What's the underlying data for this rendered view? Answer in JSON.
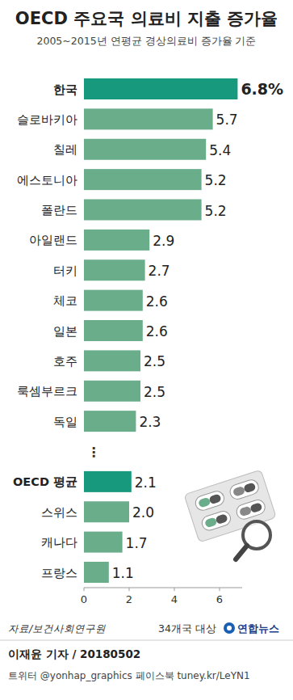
{
  "chart_data": {
    "type": "bar",
    "orientation": "horizontal",
    "title": "OECD 주요국 의료비 지출 증가율",
    "subtitle": "2005~2015년 연평균 경상의료비 증가율 기준",
    "categories": [
      "한국",
      "슬로바키아",
      "칠레",
      "에스토니아",
      "폴란드",
      "아일랜드",
      "터키",
      "체코",
      "일본",
      "호주",
      "룩셈부르크",
      "독일",
      "⋮",
      "OECD 평균",
      "스위스",
      "캐나다",
      "프랑스"
    ],
    "values": [
      6.8,
      5.7,
      5.4,
      5.2,
      5.2,
      2.9,
      2.7,
      2.6,
      2.6,
      2.5,
      2.5,
      2.3,
      null,
      2.1,
      2.0,
      1.7,
      1.1
    ],
    "value_labels": [
      "6.8%",
      "5.7",
      "5.4",
      "5.2",
      "5.2",
      "2.9",
      "2.7",
      "2.6",
      "2.6",
      "2.5",
      "2.5",
      "2.3",
      null,
      "2.1",
      "2.0",
      "1.7",
      "1.1"
    ],
    "colors": [
      "#16997d",
      "#6aad8b",
      "#6aad8b",
      "#6aad8b",
      "#6aad8b",
      "#6aad8b",
      "#6aad8b",
      "#6aad8b",
      "#6aad8b",
      "#6aad8b",
      "#6aad8b",
      "#6aad8b",
      null,
      "#16997d",
      "#6aad8b",
      "#6aad8b",
      "#6aad8b"
    ],
    "xlim": [
      0,
      7
    ],
    "xticks": [
      0,
      2,
      4,
      6
    ],
    "grid": false,
    "data_labels": true,
    "source": "자료/보건사회연구원",
    "note": "34개국 대상",
    "logo": "연합뉴스",
    "byline": "이재윤 기자 / 20180502",
    "social": "트위터 @yonhap_graphics  페이스북 tuney.kr/LeYN1"
  }
}
